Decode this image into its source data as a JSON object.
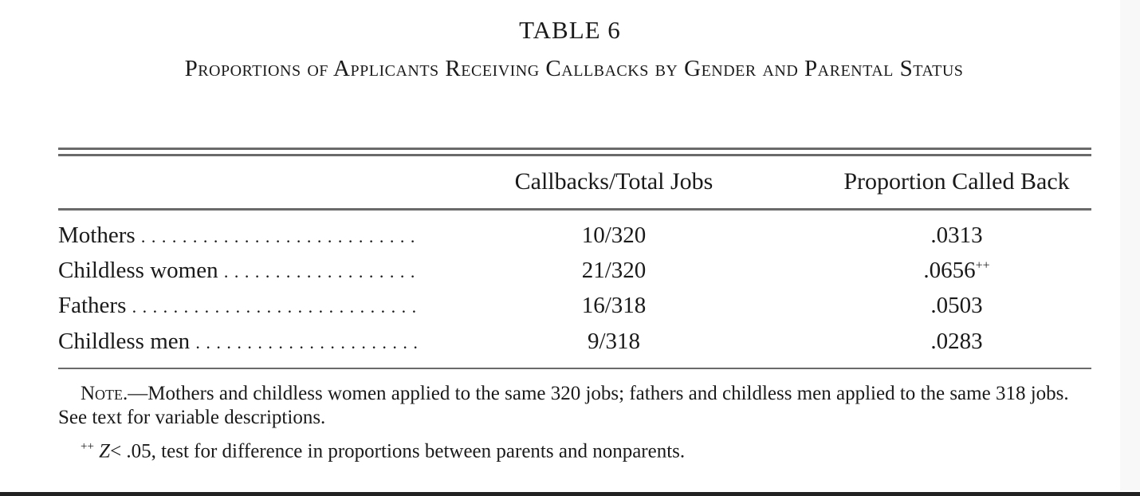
{
  "table": {
    "title": "TABLE 6",
    "subtitle": "Proportions of Applicants Receiving Callbacks by Gender and Parental Status",
    "columns": [
      "",
      "Callbacks/Total Jobs",
      "Proportion Called Back"
    ],
    "rows": [
      {
        "label": "Mothers",
        "callbacks": "10/320",
        "proportion": ".0313",
        "mark": ""
      },
      {
        "label": "Childless women",
        "callbacks": "21/320",
        "proportion": ".0656",
        "mark": "++"
      },
      {
        "label": "Fathers",
        "callbacks": "16/318",
        "proportion": ".0503",
        "mark": ""
      },
      {
        "label": "Childless men",
        "callbacks": "9/318",
        "proportion": ".0283",
        "mark": ""
      }
    ],
    "note_label": "Note.",
    "note_text": "—Mothers and childless women applied to the same 320 jobs; fathers and childless men applied to the same 318 jobs. See text for variable descriptions.",
    "footnote_mark": "++",
    "footnote_var": "Z",
    "footnote_text": "< .05, test for difference in proportions between parents and nonparents."
  }
}
